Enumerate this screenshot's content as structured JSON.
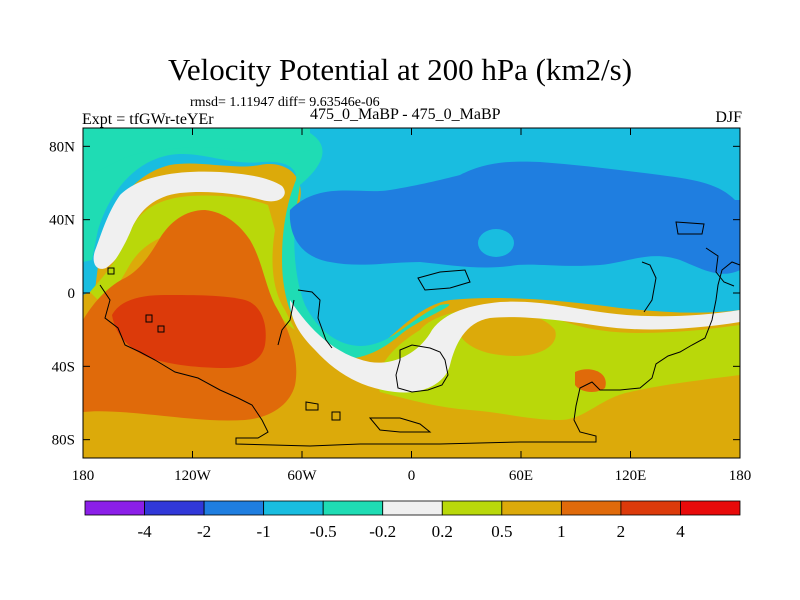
{
  "title": "Velocity Potential at 200 hPa (km2/s)",
  "subtitle": "rmsd= 1.11947 diff= 9.63546e-06",
  "left_label": "Expt = tfGWr-teYEr",
  "center_label": "475_0_MaBP - 475_0_MaBP",
  "right_label": "DJF",
  "chart_data": {
    "type": "heatmap",
    "title": "Velocity Potential at 200 hPa (km2/s)",
    "field": "velocity potential",
    "level": "200 hPa",
    "units": "km2/s",
    "projection": "cylindrical equidistant",
    "xlim": [
      -180,
      180
    ],
    "ylim": [
      -90,
      90
    ],
    "x_ticks": [
      {
        "value": -180,
        "label": "180"
      },
      {
        "value": -120,
        "label": "120W"
      },
      {
        "value": -60,
        "label": "60W"
      },
      {
        "value": 0,
        "label": "0"
      },
      {
        "value": 60,
        "label": "60E"
      },
      {
        "value": 120,
        "label": "120E"
      },
      {
        "value": 180,
        "label": "180"
      }
    ],
    "y_ticks": [
      {
        "value": 80,
        "label": "80N"
      },
      {
        "value": 40,
        "label": "40N"
      },
      {
        "value": 0,
        "label": "0"
      },
      {
        "value": -40,
        "label": "40S"
      },
      {
        "value": -80,
        "label": "80S"
      }
    ],
    "colorbar": {
      "orientation": "horizontal",
      "levels": [
        -4,
        -2,
        -1,
        -0.5,
        -0.2,
        0.2,
        0.5,
        1,
        2,
        4
      ],
      "labels": [
        "-4",
        "-2",
        "-1",
        "-0.5",
        "-0.2",
        "0.2",
        "0.5",
        "1",
        "2",
        "4"
      ],
      "colors": [
        "#8b1fe8",
        "#3138d8",
        "#1f7ee0",
        "#19bde0",
        "#1fdcb4",
        "#f0f0f0",
        "#b9d80a",
        "#dcaa0a",
        "#e06a0a",
        "#dc3a0a",
        "#e80a0a"
      ]
    },
    "regions": [
      {
        "bin": "2 to 4",
        "color": "#dc3a0a",
        "center": [
          -102,
          -18
        ]
      },
      {
        "bin": "1 to 2",
        "color": "#e06a0a",
        "center": [
          -112,
          -10
        ]
      },
      {
        "bin": "0.5 to 1",
        "color": "#dcaa0a",
        "center": [
          -60,
          -70
        ]
      },
      {
        "bin": "0.2 to 0.5",
        "color": "#b9d80a",
        "center": [
          70,
          -45
        ]
      },
      {
        "bin": "-0.2 to 0.2",
        "color": "#f0f0f0",
        "center": [
          5,
          -35
        ]
      },
      {
        "bin": "-0.5 to -0.2",
        "color": "#1fdcb4",
        "center": [
          -95,
          70
        ]
      },
      {
        "bin": "-1 to -0.5",
        "color": "#19bde0",
        "center": [
          60,
          60
        ]
      },
      {
        "bin": "-2 to -1",
        "color": "#1f7ee0",
        "center": [
          60,
          30
        ]
      }
    ]
  }
}
